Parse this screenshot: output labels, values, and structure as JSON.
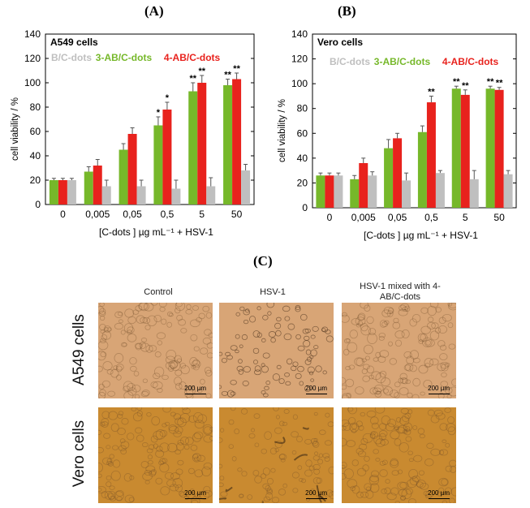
{
  "panels": {
    "a_label": "(A)",
    "b_label": "(B)",
    "c_label": "(C)"
  },
  "chart_data": [
    {
      "type": "bar",
      "panel": "(A)",
      "cell_line": "A549 cells",
      "categories": [
        "0",
        "0,005",
        "0,05",
        "0,5",
        "5",
        "50"
      ],
      "series": [
        {
          "name": "3-AB/C-dots",
          "color": "#76b82a",
          "values": [
            20,
            27,
            45,
            65,
            93,
            98
          ],
          "errors": [
            1.5,
            4,
            5,
            7,
            7,
            5
          ]
        },
        {
          "name": "4-AB/C-dots",
          "color": "#e8221d",
          "values": [
            20,
            32,
            58,
            78,
            100,
            103
          ],
          "errors": [
            1.5,
            5,
            5,
            6,
            6,
            5
          ]
        },
        {
          "name": "B/C-dots",
          "color": "#bfbfbf",
          "values": [
            20,
            15,
            15,
            13,
            15,
            28
          ],
          "errors": [
            1.5,
            5,
            5,
            7,
            7,
            5
          ]
        }
      ],
      "annotations": [
        {
          "category": "0,5",
          "series": "3-AB/C-dots",
          "text": "*"
        },
        {
          "category": "0,5",
          "series": "4-AB/C-dots",
          "text": "*"
        },
        {
          "category": "5",
          "series": "3-AB/C-dots",
          "text": "**"
        },
        {
          "category": "5",
          "series": "4-AB/C-dots",
          "text": "**"
        },
        {
          "category": "50",
          "series": "3-AB/C-dots",
          "text": "**"
        },
        {
          "category": "50",
          "series": "4-AB/C-dots",
          "text": "**"
        }
      ],
      "ylabel": "cell viability / %",
      "xlabel": "[C-dots ] µg mL⁻¹ + HSV-1",
      "ylim": [
        0,
        140
      ],
      "yticks": [
        "0",
        "20",
        "40",
        "60",
        "80",
        "100",
        "120",
        "140"
      ],
      "legend": [
        "B/C-dots",
        "3-AB/C-dots",
        "4-AB/C-dots"
      ]
    },
    {
      "type": "bar",
      "panel": "(B)",
      "cell_line": "Vero cells",
      "categories": [
        "0",
        "0,005",
        "0,05",
        "0,5",
        "5",
        "50"
      ],
      "series": [
        {
          "name": "3-AB/C-dots",
          "color": "#76b82a",
          "values": [
            26,
            23,
            48,
            61,
            96,
            96
          ],
          "errors": [
            2,
            3,
            7,
            5,
            2,
            2
          ]
        },
        {
          "name": "4-AB/C-dots",
          "color": "#e8221d",
          "values": [
            26,
            36,
            56,
            85,
            91,
            95
          ],
          "errors": [
            2,
            4,
            4,
            5,
            4,
            2
          ]
        },
        {
          "name": "B/C-dots",
          "color": "#bfbfbf",
          "values": [
            26,
            26,
            22,
            28,
            23,
            27
          ],
          "errors": [
            2,
            3,
            6,
            2,
            7,
            3
          ]
        }
      ],
      "annotations": [
        {
          "category": "0,5",
          "series": "4-AB/C-dots",
          "text": "**"
        },
        {
          "category": "5",
          "series": "3-AB/C-dots",
          "text": "**"
        },
        {
          "category": "5",
          "series": "4-AB/C-dots",
          "text": "**"
        },
        {
          "category": "50",
          "series": "3-AB/C-dots",
          "text": "**"
        },
        {
          "category": "50",
          "series": "4-AB/C-dots",
          "text": "**"
        }
      ],
      "ylabel": "cell viability / %",
      "xlabel": "[C-dots ] µg mL⁻¹ + HSV-1",
      "ylim": [
        0,
        140
      ],
      "yticks": [
        "0",
        "20",
        "40",
        "60",
        "80",
        "100",
        "120",
        "140"
      ],
      "legend": [
        "B/C-dots",
        "3-AB/C-dots",
        "4-AB/C-dots"
      ]
    }
  ],
  "micrographs": {
    "columns": [
      "Control",
      "HSV-1",
      "HSV-1 mixed with 4-AB/C-dots"
    ],
    "rows": [
      "A549 cells",
      "Vero cells"
    ],
    "scale_bar": "200 µm",
    "colors": {
      "a549": "#d8a576",
      "vero": "#c98a30"
    }
  }
}
